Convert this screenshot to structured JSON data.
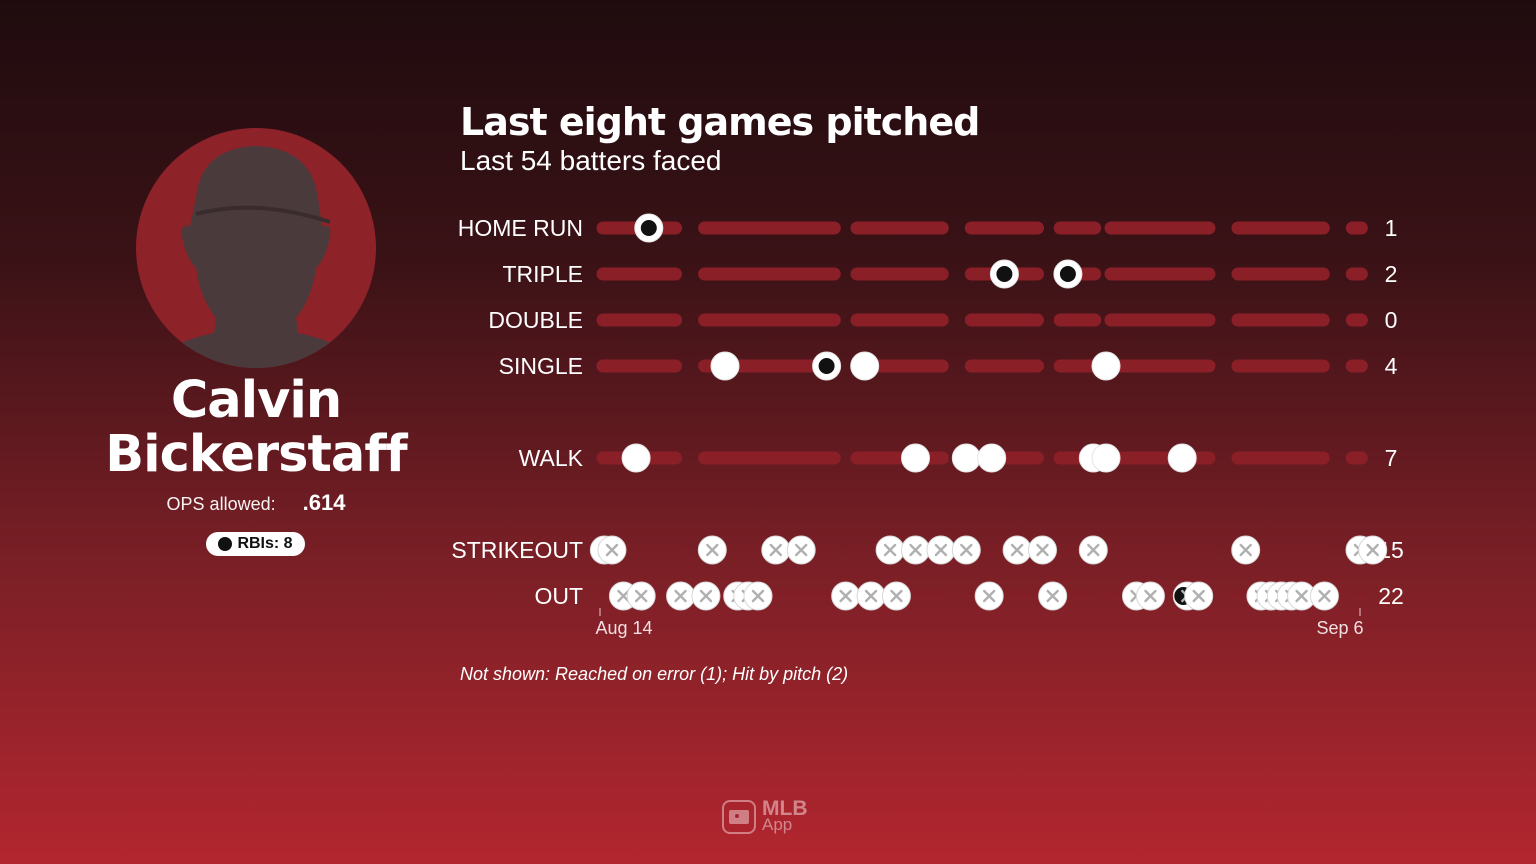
{
  "player": {
    "name_line1": "Calvin",
    "name_line2": "Bickerstaff",
    "ops_label": "OPS allowed:",
    "ops_value": ".614",
    "rbi_label": "RBIs: 8"
  },
  "logo": {
    "line1": "MLB",
    "line2": "App"
  },
  "footnote": "Not shown: Reached on error (1); Hit by pitch (2)",
  "colors": {
    "track": "#8a1f27",
    "dot_fill": "#ffffff",
    "rbi_marker": "#111111",
    "out_x": "#b0b0b0"
  },
  "chart_data": {
    "type": "scatter",
    "title": "Last eight games pitched",
    "subtitle": "Last 54 batters faced",
    "x_axis_labels": {
      "start": "Aug 14",
      "end": "Sep 6"
    },
    "games": 8,
    "categories": [
      "HOME RUN",
      "TRIPLE",
      "DOUBLE",
      "SINGLE",
      "WALK",
      "STRIKEOUT",
      "OUT"
    ],
    "totals": [
      1,
      2,
      0,
      4,
      7,
      15,
      22
    ],
    "series": [
      {
        "label": "HOME RUN",
        "total": 1,
        "events": [
          {
            "batter": 4,
            "rbi": true
          }
        ]
      },
      {
        "label": "TRIPLE",
        "total": 2,
        "events": [
          {
            "batter": 32,
            "rbi": true
          },
          {
            "batter": 37,
            "rbi": true
          }
        ]
      },
      {
        "label": "DOUBLE",
        "total": 0,
        "events": []
      },
      {
        "label": "SINGLE",
        "total": 4,
        "events": [
          {
            "batter": 10,
            "rbi": false
          },
          {
            "batter": 18,
            "rbi": true
          },
          {
            "batter": 21,
            "rbi": false
          },
          {
            "batter": 40,
            "rbi": false
          }
        ]
      },
      {
        "label": "WALK",
        "total": 7,
        "events": [
          {
            "batter": 3,
            "rbi": false
          },
          {
            "batter": 25,
            "rbi": false
          },
          {
            "batter": 29,
            "rbi": false
          },
          {
            "batter": 31,
            "rbi": false
          },
          {
            "batter": 39,
            "rbi": false
          },
          {
            "batter": 40,
            "rbi": false
          },
          {
            "batter": 46,
            "rbi": false
          }
        ]
      },
      {
        "label": "STRIKEOUT",
        "total": 15,
        "events": [
          {
            "batter": 0.5,
            "rbi": false
          },
          {
            "batter": 1.1,
            "rbi": false
          },
          {
            "batter": 9,
            "rbi": false
          },
          {
            "batter": 14,
            "rbi": false
          },
          {
            "batter": 16,
            "rbi": false
          },
          {
            "batter": 23,
            "rbi": false
          },
          {
            "batter": 25,
            "rbi": false
          },
          {
            "batter": 27,
            "rbi": false
          },
          {
            "batter": 29,
            "rbi": false
          },
          {
            "batter": 33,
            "rbi": false
          },
          {
            "batter": 35,
            "rbi": false
          },
          {
            "batter": 39,
            "rbi": false
          },
          {
            "batter": 51,
            "rbi": false
          },
          {
            "batter": 60,
            "rbi": false
          },
          {
            "batter": 61,
            "rbi": false
          }
        ]
      },
      {
        "label": "OUT",
        "total": 22,
        "events": [
          {
            "batter": 2,
            "rbi": false
          },
          {
            "batter": 3.4,
            "rbi": false
          },
          {
            "batter": 6.5,
            "rbi": false
          },
          {
            "batter": 8.5,
            "rbi": false
          },
          {
            "batter": 11,
            "rbi": false
          },
          {
            "batter": 11.8,
            "rbi": false
          },
          {
            "batter": 12.6,
            "rbi": false
          },
          {
            "batter": 19.5,
            "rbi": false
          },
          {
            "batter": 21.5,
            "rbi": false
          },
          {
            "batter": 23.5,
            "rbi": false
          },
          {
            "batter": 30.8,
            "rbi": false
          },
          {
            "batter": 35.8,
            "rbi": false
          },
          {
            "batter": 42.4,
            "rbi": false
          },
          {
            "batter": 43.5,
            "rbi": false
          },
          {
            "batter": 46.4,
            "rbi": true
          },
          {
            "batter": 47.3,
            "rbi": false
          },
          {
            "batter": 52.2,
            "rbi": false
          },
          {
            "batter": 53.0,
            "rbi": false
          },
          {
            "batter": 53.8,
            "rbi": false
          },
          {
            "batter": 54.6,
            "rbi": false
          },
          {
            "batter": 55.4,
            "rbi": false
          },
          {
            "batter": 57.2,
            "rbi": false
          }
        ]
      }
    ]
  }
}
